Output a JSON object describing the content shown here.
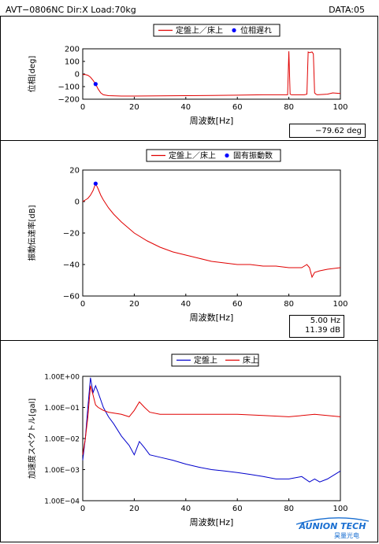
{
  "header": {
    "left": "AVT−0806NC  Dir:X  Load:70kg",
    "right": "DATA:05"
  },
  "charts": [
    {
      "id": "phase",
      "legend": [
        {
          "label": "定盤上／床上",
          "kind": "line",
          "color": "#e00000"
        },
        {
          "label": "位相遅れ",
          "kind": "dot",
          "color": "#0000ff"
        }
      ],
      "ylabel": "位相[deg]",
      "xlabel": "周波数[Hz]",
      "readout": [
        "−79.62  deg"
      ],
      "xticks": [
        "0",
        "20",
        "40",
        "60",
        "80",
        "100"
      ],
      "yticks": [
        "200",
        "100",
        "0",
        "−100",
        "−200"
      ]
    },
    {
      "id": "transfer",
      "legend": [
        {
          "label": "定盤上／床上",
          "kind": "line",
          "color": "#e00000"
        },
        {
          "label": "固有振動数",
          "kind": "dot",
          "color": "#0000ff"
        }
      ],
      "ylabel": "振動伝達率[dB]",
      "xlabel": "周波数[Hz]",
      "readout": [
        "5.00  Hz",
        "11.39  dB"
      ],
      "xticks": [
        "0",
        "20",
        "40",
        "60",
        "80",
        "100"
      ],
      "yticks": [
        "20",
        "0",
        "−20",
        "−40",
        "−60"
      ]
    },
    {
      "id": "spectrum",
      "legend": [
        {
          "label": "定盤上",
          "kind": "line",
          "color": "#0000cc"
        },
        {
          "label": "床上",
          "kind": "line",
          "color": "#e00000"
        }
      ],
      "ylabel": "加速度スペクトル[gal]",
      "xlabel": "周波数[Hz]",
      "xticks": [
        "0",
        "20",
        "40",
        "60",
        "80",
        "100"
      ],
      "yticks": [
        "1.00E+00",
        "1.00E−01",
        "1.00E−02",
        "1.00E−03",
        "1.00E−04"
      ]
    }
  ],
  "logo": {
    "name": "AUNION TECH",
    "sub": "昊量光电"
  },
  "chart_data": [
    {
      "type": "line",
      "xlabel": "周波数[Hz]",
      "ylabel": "位相[deg]",
      "xlim": [
        0,
        100
      ],
      "ylim": [
        -200,
        200
      ],
      "grid": false,
      "legend": "top-center",
      "series": [
        {
          "name": "定盤上／床上",
          "color": "#e00000",
          "x": [
            0,
            1,
            2,
            3,
            4,
            5,
            6,
            7,
            8,
            10,
            15,
            20,
            30,
            40,
            50,
            60,
            70,
            79.5,
            80,
            80.5,
            81,
            86,
            87,
            87.5,
            88,
            89,
            89.5,
            90,
            90.5,
            91,
            95,
            97,
            100
          ],
          "y": [
            -5,
            -5,
            -10,
            -25,
            -50,
            -80,
            -120,
            -150,
            -165,
            -172,
            -175,
            -175,
            -174,
            -172,
            -170,
            -168,
            -165,
            -165,
            180,
            -160,
            -165,
            -165,
            -160,
            175,
            170,
            175,
            160,
            -150,
            -160,
            -165,
            -160,
            -150,
            -155
          ]
        },
        {
          "name": "位相遅れ",
          "type": "scatter",
          "color": "#0000ff",
          "x": [
            5
          ],
          "y": [
            -79.62
          ]
        }
      ]
    },
    {
      "type": "line",
      "xlabel": "周波数[Hz]",
      "ylabel": "振動伝達率[dB]",
      "xlim": [
        0,
        100
      ],
      "ylim": [
        -60,
        20
      ],
      "grid": false,
      "legend": "top-center",
      "series": [
        {
          "name": "定盤上／床上",
          "color": "#e00000",
          "x": [
            0,
            1,
            2,
            3,
            4,
            5,
            6,
            7,
            8,
            10,
            12,
            15,
            20,
            25,
            30,
            35,
            40,
            45,
            50,
            55,
            60,
            65,
            70,
            75,
            80,
            85,
            87,
            88,
            89,
            90,
            92,
            95,
            100
          ],
          "y": [
            0,
            1,
            2,
            4,
            7,
            11.39,
            8,
            4,
            1,
            -4,
            -8,
            -13,
            -20,
            -25,
            -29,
            -32,
            -34,
            -36,
            -38,
            -39,
            -40,
            -40,
            -41,
            -41,
            -42,
            -42,
            -40,
            -42,
            -48,
            -45,
            -44,
            -43,
            -42
          ]
        },
        {
          "name": "固有振動数",
          "type": "scatter",
          "color": "#0000ff",
          "x": [
            5
          ],
          "y": [
            11.39
          ]
        }
      ]
    },
    {
      "type": "line",
      "xlabel": "周波数[Hz]",
      "ylabel": "加速度スペクトル[gal]",
      "xlim": [
        0,
        100
      ],
      "ylim": [
        0.0001,
        1
      ],
      "yscale": "log",
      "grid": false,
      "legend": "top-center",
      "series": [
        {
          "name": "定盤上",
          "color": "#0000cc",
          "x": [
            0,
            1,
            2,
            3,
            4,
            5,
            6,
            8,
            10,
            12,
            15,
            18,
            20,
            22,
            24,
            26,
            30,
            35,
            40,
            45,
            50,
            55,
            60,
            65,
            70,
            75,
            80,
            85,
            88,
            90,
            92,
            95,
            100
          ],
          "y": [
            0.002,
            0.01,
            0.1,
            0.9,
            0.3,
            0.5,
            0.3,
            0.1,
            0.05,
            0.03,
            0.012,
            0.006,
            0.003,
            0.008,
            0.005,
            0.003,
            0.0025,
            0.002,
            0.0015,
            0.0012,
            0.001,
            0.0009,
            0.0008,
            0.0007,
            0.0006,
            0.0005,
            0.0005,
            0.0006,
            0.0004,
            0.0005,
            0.0004,
            0.0005,
            0.0009
          ]
        },
        {
          "name": "床上",
          "color": "#e00000",
          "x": [
            0,
            1,
            2,
            3,
            4,
            5,
            6,
            8,
            10,
            15,
            18,
            20,
            22,
            24,
            26,
            30,
            40,
            50,
            60,
            70,
            80,
            90,
            100
          ],
          "y": [
            0.003,
            0.01,
            0.05,
            0.5,
            0.25,
            0.12,
            0.1,
            0.08,
            0.07,
            0.06,
            0.05,
            0.08,
            0.15,
            0.1,
            0.07,
            0.06,
            0.06,
            0.06,
            0.06,
            0.055,
            0.05,
            0.06,
            0.05
          ]
        }
      ]
    }
  ]
}
